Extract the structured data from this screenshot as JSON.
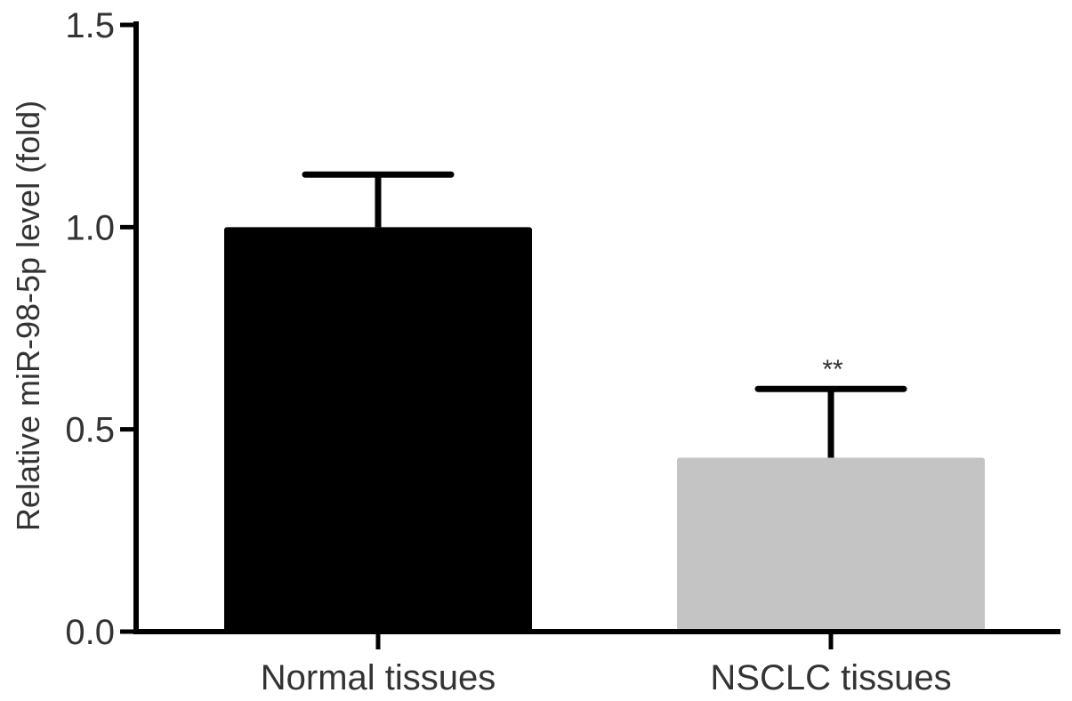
{
  "chart_data": {
    "type": "bar",
    "title": "",
    "xlabel": "",
    "ylabel": "Relative miR-98-5p level (fold)",
    "ylim": [
      0,
      1.5
    ],
    "yticks": [
      0.0,
      0.5,
      1.0,
      1.5
    ],
    "ytick_labels": [
      "0.0",
      "0.5",
      "1.0",
      "1.5"
    ],
    "categories": [
      "Normal tissues",
      "NSCLC tissues"
    ],
    "values": [
      1.0,
      0.43
    ],
    "error_upper": [
      0.13,
      0.17
    ],
    "bar_colors": [
      "#000000",
      "#c4c4c4"
    ],
    "annotations": [
      "",
      "**"
    ],
    "grid": false,
    "legend": "none"
  }
}
